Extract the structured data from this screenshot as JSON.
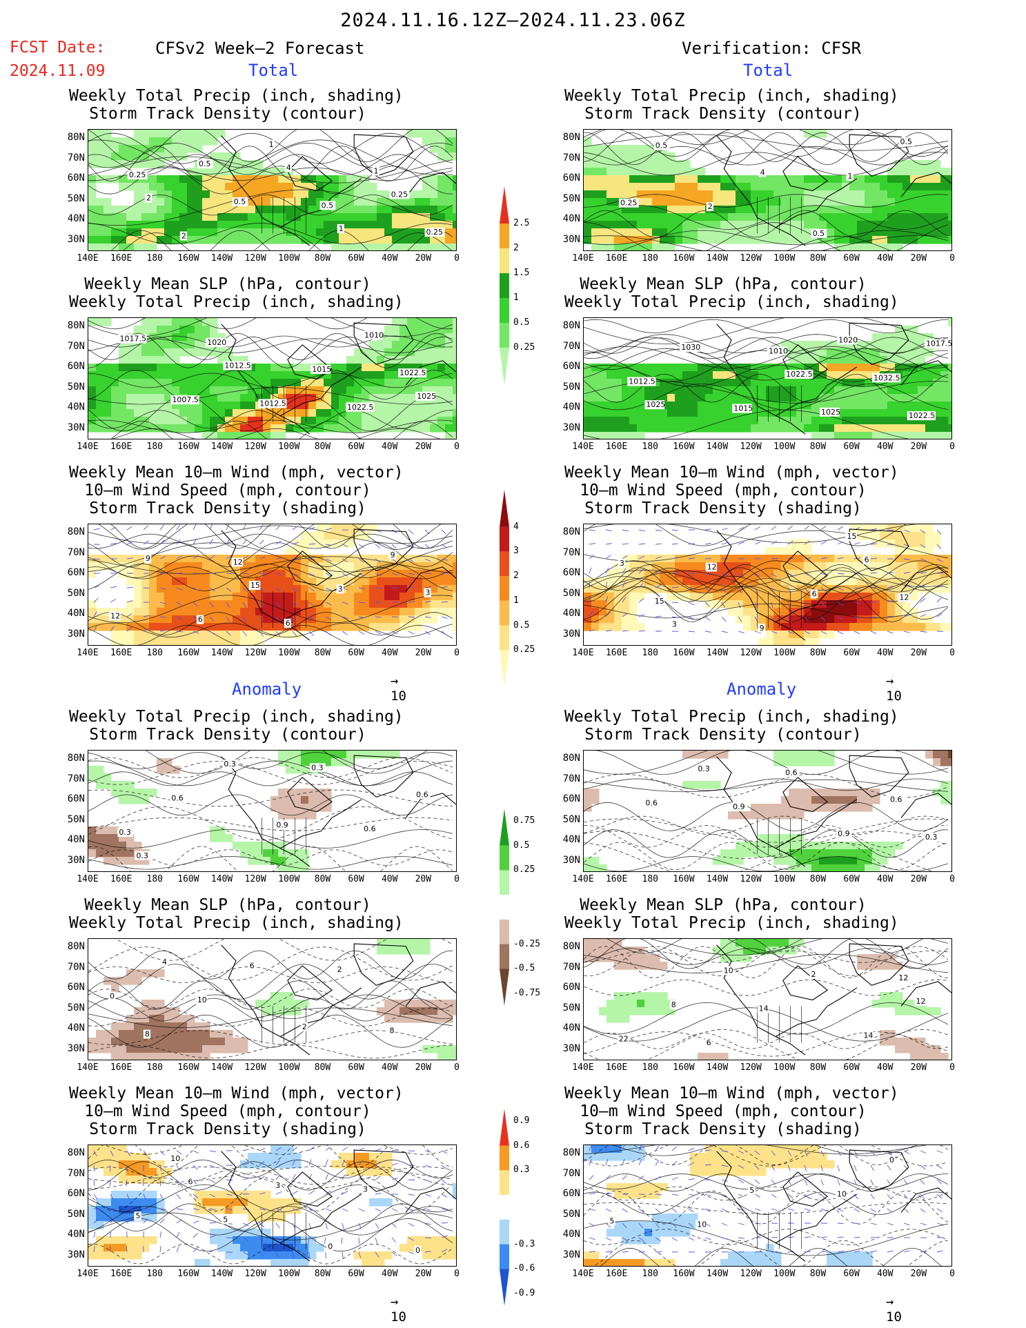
{
  "header": {
    "period": "2024.11.16.12Z–2024.11.23.06Z",
    "fcst_label": "FCST Date:",
    "fcst_date": "2024.11.09",
    "left_title": "CFSv2 Week–2 Forecast",
    "right_title": "Verification: CFSR",
    "total_label": "Total",
    "anomaly_label": "Anomaly"
  },
  "axis": {
    "lat_ticks": [
      "80N",
      "70N",
      "60N",
      "50N",
      "40N",
      "30N"
    ],
    "lon_ticks": [
      "140E",
      "160E",
      "180",
      "160W",
      "140W",
      "120W",
      "100W",
      "80W",
      "60W",
      "40W",
      "20W",
      "0"
    ]
  },
  "panel_titles": {
    "precip_storm": [
      "Weekly Total Precip (inch, shading)",
      "Storm Track Density (contour)"
    ],
    "slp_precip": [
      "Weekly Mean SLP (hPa, contour)",
      "Weekly Total Precip (inch, shading)"
    ],
    "wind_storm": [
      "Weekly Mean 10–m Wind (mph, vector)",
      "10–m Wind Speed (mph, contour)",
      "Storm Track Density (shading)"
    ]
  },
  "vector_ref": "10",
  "colors": {
    "precip_total": [
      "#b5f5a8",
      "#73e664",
      "#37d22d",
      "#1ea01e",
      "#f7e57e",
      "#f5a623",
      "#e3311d"
    ],
    "storm_total": [
      "#fff9b8",
      "#fde28a",
      "#fbbb4a",
      "#f78a1e",
      "#e8501a",
      "#c31a1a",
      "#8b0c0c"
    ],
    "anom_precip": [
      "#6b4530",
      "#a07460",
      "#dcbcae",
      "#ffffff",
      "#b5f5a8",
      "#50d23d",
      "#1e9e1e"
    ],
    "anom_storm": [
      "#1e55cc",
      "#3c8cf0",
      "#aad7f8",
      "#ffffff",
      "#fde28a",
      "#f59a23",
      "#e8321d"
    ]
  },
  "colorbars": {
    "precip_total": [
      "0.25",
      "0.5",
      "1",
      "1.5",
      "2",
      "2.5"
    ],
    "storm_total": [
      "0.25",
      "0.5",
      "1",
      "2",
      "3",
      "4"
    ],
    "anom_precip": [
      "-0.75",
      "-0.5",
      "-0.25",
      "0.25",
      "0.5",
      "0.75"
    ],
    "anom_storm": [
      "-0.9",
      "-0.6",
      "-0.3",
      "0.3",
      "0.6",
      "0.9"
    ]
  },
  "contour_labels": {
    "p1": [
      "0.25",
      "0.5",
      "1",
      "2",
      "4",
      "0.25",
      "0.5",
      "1",
      "2",
      "0.5",
      "0.25",
      "1"
    ],
    "p2": [
      "1025",
      "1012.5",
      "1010",
      "1007.5",
      "1015",
      "1017.5",
      "1012.5",
      "1022.5",
      "1020",
      "1022.5"
    ],
    "p3": [
      "12",
      "15",
      "9",
      "6",
      "3",
      "9",
      "6",
      "3",
      "12"
    ],
    "p4": [
      "0.3",
      "0.9",
      "0.6",
      "0.3",
      "0.6",
      "0.6",
      "0.3",
      "0.3"
    ],
    "p5": [
      "4",
      "2",
      "0",
      "6",
      "8",
      "10",
      "2",
      "8"
    ],
    "p6": [
      "6",
      "0",
      "5",
      "3",
      "0",
      "5",
      "3",
      "10"
    ],
    "v1": [
      "0.5",
      "0.25",
      "4",
      "0.5",
      "2",
      "1",
      "0.5"
    ],
    "v2": [
      "1020",
      "1025",
      "1022.5",
      "1017.5",
      "1015",
      "1032.5",
      "1030",
      "1025",
      "1012.5",
      "1010",
      "1022.5"
    ],
    "v3": [
      "6",
      "3",
      "6",
      "3",
      "9",
      "12",
      "12",
      "15",
      "15"
    ],
    "v4": [
      "0.6",
      "0.3",
      "0.9",
      "0.6",
      "0.6",
      "0.3",
      "0.9"
    ],
    "v5": [
      "12",
      "10",
      "14",
      "8",
      "2",
      "22",
      "14",
      "12",
      "6"
    ],
    "v6": [
      "5",
      "5",
      "0",
      "10",
      "10"
    ]
  },
  "chart_data": [
    {
      "panel": "forecast-total-precip-storm",
      "type": "heatmap",
      "title": "Weekly Total Precip (inch, shading) / Storm Track Density (contour)",
      "x_range": [
        "140E",
        "0"
      ],
      "y_range": [
        "30N",
        "80N"
      ],
      "levels": [
        0.25,
        0.5,
        1,
        1.5,
        2,
        2.5
      ]
    },
    {
      "panel": "verification-total-precip-storm",
      "type": "heatmap",
      "title": "Weekly Total Precip (inch, shading) / Storm Track Density (contour)",
      "x_range": [
        "140E",
        "0"
      ],
      "y_range": [
        "30N",
        "80N"
      ],
      "levels": [
        0.25,
        0.5,
        1,
        1.5,
        2,
        2.5
      ]
    },
    {
      "panel": "forecast-total-slp-precip",
      "type": "heatmap",
      "title": "Weekly Mean SLP (hPa, contour) / Weekly Total Precip (inch, shading)",
      "levels": [
        0.25,
        0.5,
        1,
        1.5,
        2,
        2.5
      ]
    },
    {
      "panel": "verification-total-slp-precip",
      "type": "heatmap",
      "title": "Weekly Mean SLP (hPa, contour) / Weekly Total Precip (inch, shading)",
      "levels": [
        0.25,
        0.5,
        1,
        1.5,
        2,
        2.5
      ]
    },
    {
      "panel": "forecast-total-wind-storm",
      "type": "heatmap",
      "title": "Weekly Mean 10–m Wind (mph, vector) / 10–m Wind Speed (mph, contour) / Storm Track Density (shading)",
      "levels": [
        0.25,
        0.5,
        1,
        2,
        3,
        4
      ]
    },
    {
      "panel": "verification-total-wind-storm",
      "type": "heatmap",
      "title": "Weekly Mean 10–m Wind (mph, vector) / 10–m Wind Speed (mph, contour) / Storm Track Density (shading)",
      "levels": [
        0.25,
        0.5,
        1,
        2,
        3,
        4
      ]
    },
    {
      "panel": "forecast-anom-precip-storm",
      "type": "heatmap",
      "levels": [
        -0.75,
        -0.5,
        -0.25,
        0.25,
        0.5,
        0.75
      ]
    },
    {
      "panel": "verification-anom-precip-storm",
      "type": "heatmap",
      "levels": [
        -0.75,
        -0.5,
        -0.25,
        0.25,
        0.5,
        0.75
      ]
    },
    {
      "panel": "forecast-anom-slp-precip",
      "type": "heatmap",
      "levels": [
        -0.75,
        -0.5,
        -0.25,
        0.25,
        0.5,
        0.75
      ]
    },
    {
      "panel": "verification-anom-slp-precip",
      "type": "heatmap",
      "levels": [
        -0.75,
        -0.5,
        -0.25,
        0.25,
        0.5,
        0.75
      ]
    },
    {
      "panel": "forecast-anom-wind-storm",
      "type": "heatmap",
      "levels": [
        -0.9,
        -0.6,
        -0.3,
        0.3,
        0.6,
        0.9
      ]
    },
    {
      "panel": "verification-anom-wind-storm",
      "type": "heatmap",
      "levels": [
        -0.9,
        -0.6,
        -0.3,
        0.3,
        0.6,
        0.9
      ]
    }
  ]
}
